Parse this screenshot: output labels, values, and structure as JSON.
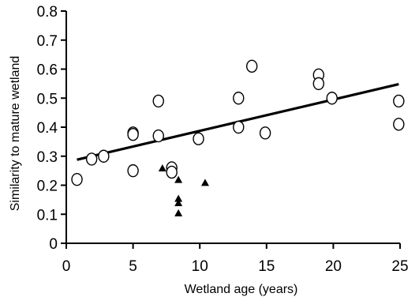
{
  "chart_data": {
    "type": "scatter",
    "xlabel": "Wetland age (years)",
    "ylabel": "Similarity to mature wetland",
    "xlim": [
      0,
      25
    ],
    "ylim": [
      0,
      0.8
    ],
    "xticks": [
      0,
      5,
      10,
      15,
      20,
      25
    ],
    "yticks": [
      0,
      0.1,
      0.2,
      0.3,
      0.4,
      0.5,
      0.6,
      0.7,
      0.8
    ],
    "xtick_labels": [
      "0",
      "5",
      "10",
      "15",
      "20",
      "25"
    ],
    "ytick_labels": [
      "0",
      "0.1",
      "0.2",
      "0.3",
      "0.4",
      "0.5",
      "0.6",
      "0.7",
      "0.8"
    ],
    "grid": false,
    "series": [
      {
        "marker": "open-circle",
        "color": "#000000",
        "points": [
          {
            "x": 0.8,
            "y": 0.22
          },
          {
            "x": 1.9,
            "y": 0.29
          },
          {
            "x": 2.8,
            "y": 0.3
          },
          {
            "x": 5.0,
            "y": 0.38
          },
          {
            "x": 5.0,
            "y": 0.375
          },
          {
            "x": 5.0,
            "y": 0.25
          },
          {
            "x": 6.9,
            "y": 0.49
          },
          {
            "x": 6.9,
            "y": 0.37
          },
          {
            "x": 7.9,
            "y": 0.26
          },
          {
            "x": 7.9,
            "y": 0.245
          },
          {
            "x": 9.9,
            "y": 0.36
          },
          {
            "x": 12.9,
            "y": 0.5
          },
          {
            "x": 12.9,
            "y": 0.4
          },
          {
            "x": 13.9,
            "y": 0.61
          },
          {
            "x": 14.9,
            "y": 0.38
          },
          {
            "x": 18.9,
            "y": 0.58
          },
          {
            "x": 18.9,
            "y": 0.55
          },
          {
            "x": 19.9,
            "y": 0.5
          },
          {
            "x": 24.9,
            "y": 0.49
          },
          {
            "x": 24.9,
            "y": 0.41
          }
        ]
      },
      {
        "marker": "filled-triangle",
        "color": "#000000",
        "points": [
          {
            "x": 7.2,
            "y": 0.26
          },
          {
            "x": 8.4,
            "y": 0.22
          },
          {
            "x": 8.4,
            "y": 0.155
          },
          {
            "x": 8.4,
            "y": 0.14
          },
          {
            "x": 8.4,
            "y": 0.105
          },
          {
            "x": 10.4,
            "y": 0.21
          }
        ]
      }
    ],
    "trendline": {
      "x": [
        0.8,
        24.9
      ],
      "y": [
        0.288,
        0.548
      ]
    }
  }
}
